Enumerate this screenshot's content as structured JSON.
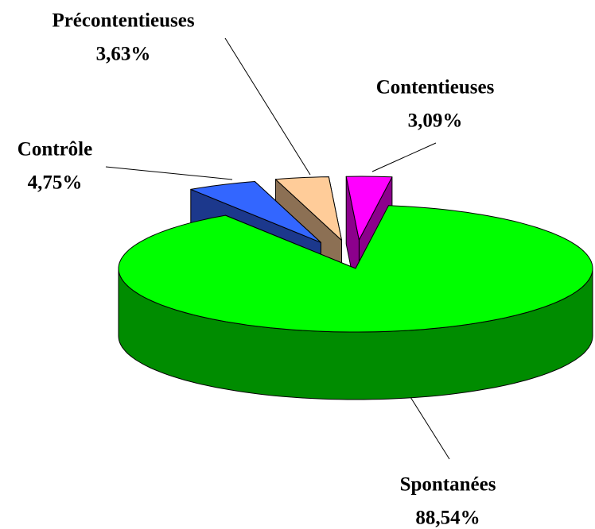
{
  "chart_data": {
    "type": "pie3d",
    "categories": [
      "Contentieuses",
      "Précontentieuses",
      "Contrôle",
      "Spontanées"
    ],
    "values": [
      3.09,
      3.63,
      4.75,
      88.54
    ],
    "value_labels": [
      "3,09%",
      "3,63%",
      "4,75%",
      "88,54%"
    ],
    "colors": [
      "#ff00ff",
      "#ffcc99",
      "#3366ff",
      "#00ff00"
    ]
  }
}
